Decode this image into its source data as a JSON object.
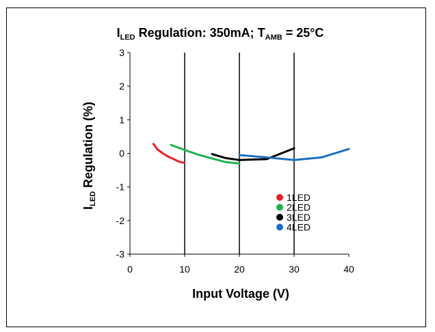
{
  "chart_data": {
    "type": "line",
    "title": {
      "main": "I",
      "sub": "LED",
      "mid": " Regulation: 350mA; T",
      "sub2": "AMB",
      "end": " = 25°C"
    },
    "xlabel": "Input Voltage (V)",
    "ylabel": {
      "main": "I",
      "sub": "LED",
      "rest": " Regulation (%)"
    },
    "xlim": [
      0,
      40
    ],
    "ylim": [
      -3,
      3
    ],
    "xticks": [
      0,
      10,
      20,
      30,
      40
    ],
    "yticks": [
      -3,
      -2,
      -1,
      0,
      1,
      2,
      3
    ],
    "vertical_gridlines": [
      10,
      20,
      30
    ],
    "legend_position": "lower-right",
    "series": [
      {
        "name": "1LED",
        "color": "#e81e25",
        "x": [
          4.3,
          5.0,
          6.0,
          7.0,
          8.0,
          9.0,
          9.9
        ],
        "y": [
          0.28,
          0.12,
          0.0,
          -0.1,
          -0.17,
          -0.25,
          -0.28
        ]
      },
      {
        "name": "2LED",
        "color": "#1fb14e",
        "x": [
          7.5,
          10.0,
          12.5,
          15.0,
          17.5,
          20.0
        ],
        "y": [
          0.25,
          0.1,
          -0.04,
          -0.15,
          -0.26,
          -0.3
        ]
      },
      {
        "name": "3LED",
        "color": "#000000",
        "x": [
          15.0,
          17.5,
          20.0,
          25.0,
          30.0
        ],
        "y": [
          -0.02,
          -0.14,
          -0.2,
          -0.17,
          0.15
        ]
      },
      {
        "name": "4LED",
        "color": "#1a6fc1",
        "x": [
          20.0,
          25.0,
          30.0,
          35.0,
          40.0
        ],
        "y": [
          -0.05,
          -0.12,
          -0.2,
          -0.12,
          0.13
        ]
      }
    ]
  }
}
